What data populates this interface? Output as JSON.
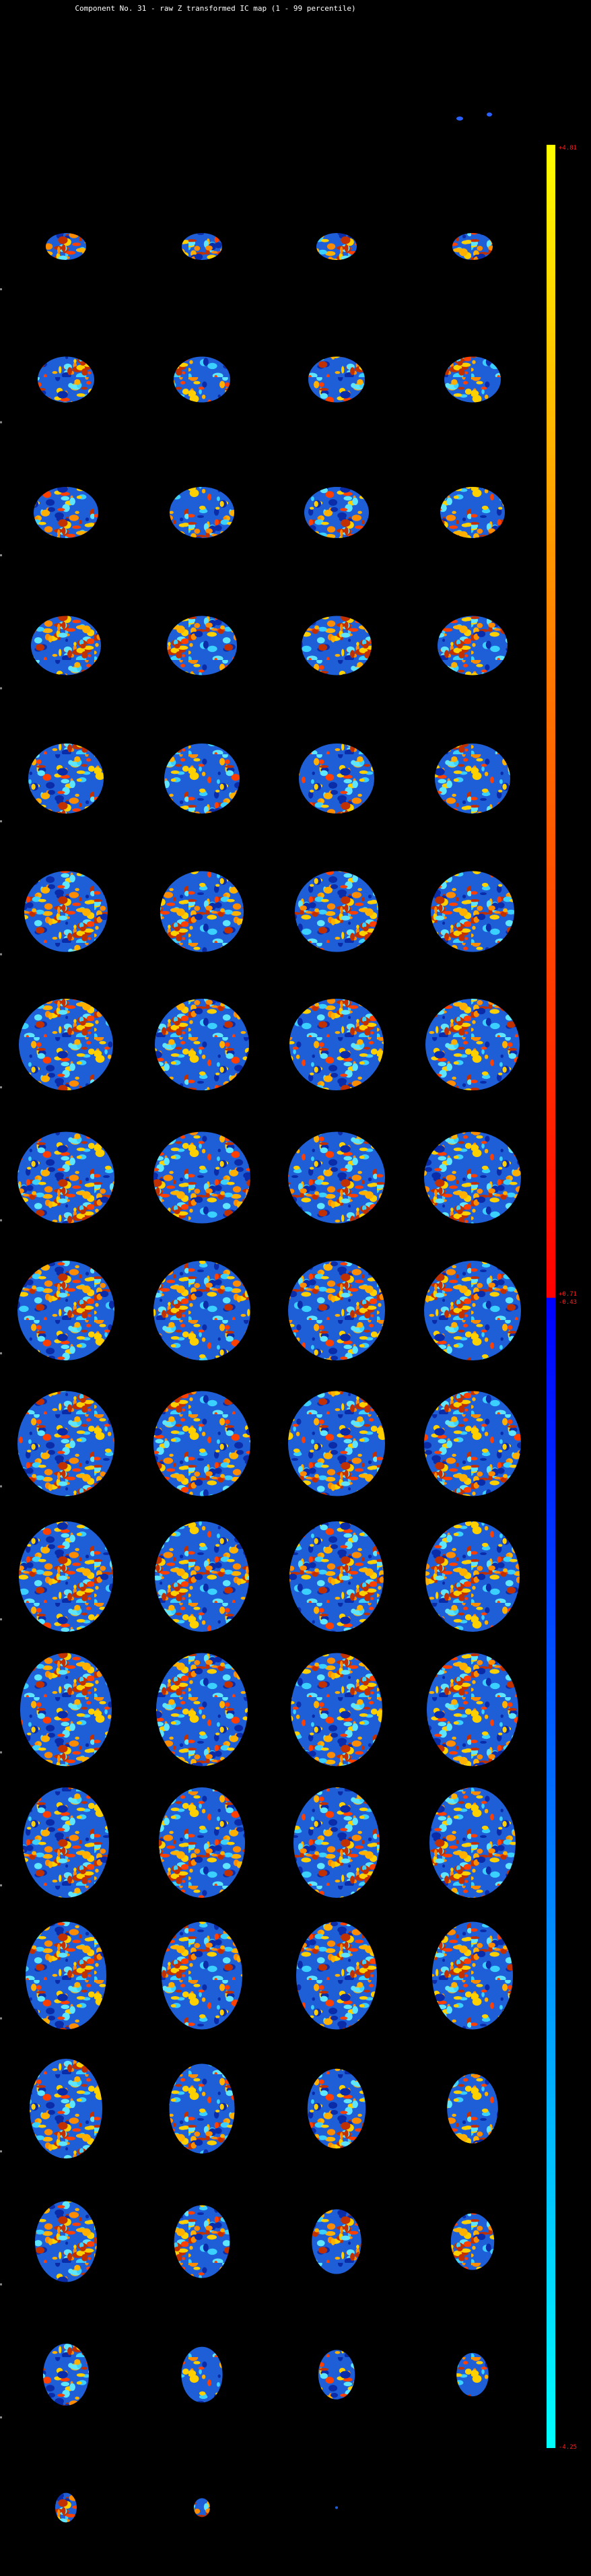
{
  "header": {
    "title": "Component No. 31 - raw Z transformed IC map (1 - 99 percentile)"
  },
  "colorbar": {
    "max_label": "+4.81",
    "upper_min_label": "+0.71",
    "lower_max_label": "-0.43",
    "min_label": "-4.25"
  }
}
